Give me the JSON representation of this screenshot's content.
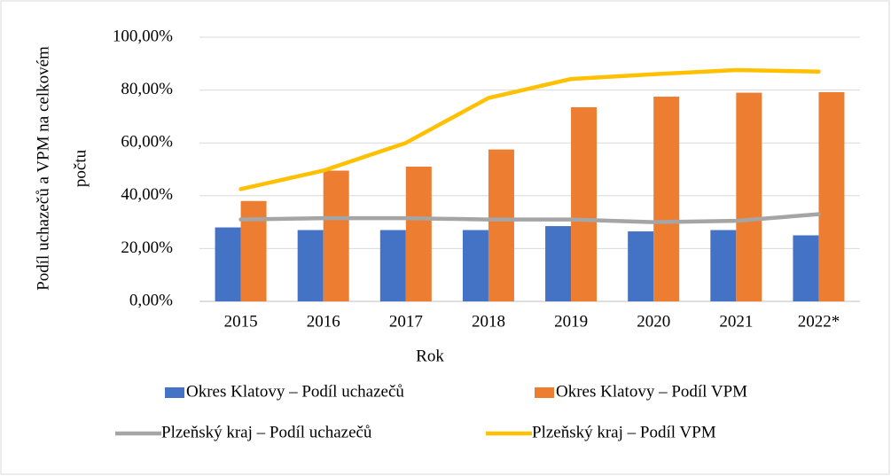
{
  "chart_data": {
    "type": "bar_line",
    "x_label": "Rok",
    "y_label": [
      "Podíl uchazečů a VPM na celkovém",
      "počtu"
    ],
    "categories": [
      "2015",
      "2016",
      "2017",
      "2018",
      "2019",
      "2020",
      "2021",
      "2022*"
    ],
    "series": [
      {
        "name": "Okres Klatovy – Podíl uchazečů",
        "type": "bar",
        "color": "#4472c4",
        "values": [
          28,
          27,
          27,
          27,
          28.5,
          26.5,
          27,
          25
        ]
      },
      {
        "name": "Okres Klatovy – Podíl VPM",
        "type": "bar",
        "color": "#ed7d31",
        "values": [
          38,
          49.5,
          51,
          57.5,
          73.5,
          77.5,
          79,
          79.2
        ]
      },
      {
        "name": "Plzeňský kraj – Podíl uchazečů",
        "type": "line",
        "color": "#a5a5a5",
        "values": [
          31,
          31.5,
          31.5,
          31,
          31,
          30,
          30.5,
          33
        ]
      },
      {
        "name": "Plzeňský kraj – Podíl VPM",
        "type": "line",
        "color": "#ffc000",
        "values": [
          42.5,
          49.5,
          60,
          77,
          84.2,
          86,
          87.6,
          87
        ]
      }
    ],
    "ylim": [
      0,
      100
    ],
    "yticks": [
      {
        "value": 0,
        "label": "0,00%"
      },
      {
        "value": 20,
        "label": "20,00%"
      },
      {
        "value": 40,
        "label": "40,00%"
      },
      {
        "value": 60,
        "label": "60,00%"
      },
      {
        "value": 80,
        "label": "80,00%"
      },
      {
        "value": 100,
        "label": "100,00%"
      }
    ],
    "grid": true
  }
}
